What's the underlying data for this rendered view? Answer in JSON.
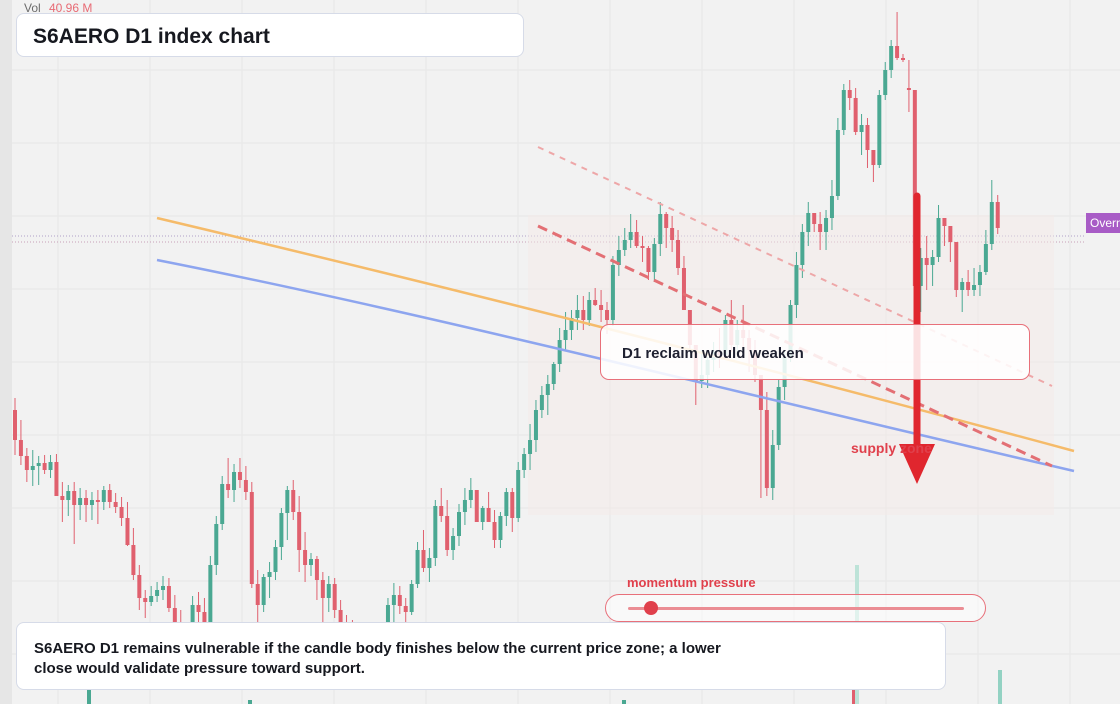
{
  "header": {
    "vol_label": "Vol",
    "vol_value": "40.96 M"
  },
  "title": "S6AERO D1 index chart",
  "callout": {
    "text": "D1 reclaim would weaken"
  },
  "zone_label": "supply zone",
  "momentum": {
    "label": "momentum pressure",
    "level": 0.07
  },
  "caption": "S6AERO D1 remains vulnerable if the candle body finishes below the current price zone; a lower close would validate pressure toward support.",
  "badge": "Overnight",
  "colors": {
    "up": "#4aa892",
    "down": "#e0606e",
    "arrow": "#e0262e",
    "ma_orange": "#f5bb6a",
    "ma_blue": "#8da5ef",
    "badge": "#a85cc6"
  },
  "chart_data": {
    "type": "candlestick",
    "ylim": [
      0,
      704
    ],
    "candles": [
      [
        410,
        398,
        455,
        440
      ],
      [
        440,
        420,
        465,
        456
      ],
      [
        456,
        448,
        482,
        470
      ],
      [
        470,
        450,
        486,
        466
      ],
      [
        466,
        456,
        485,
        463
      ],
      [
        463,
        455,
        474,
        470
      ],
      [
        470,
        455,
        478,
        462
      ],
      [
        462,
        454,
        495,
        496
      ],
      [
        496,
        482,
        522,
        500
      ],
      [
        500,
        485,
        516,
        491
      ],
      [
        491,
        482,
        544,
        505
      ],
      [
        505,
        488,
        520,
        498
      ],
      [
        498,
        490,
        522,
        505
      ],
      [
        505,
        492,
        520,
        500
      ],
      [
        500,
        490,
        524,
        502
      ],
      [
        502,
        486,
        510,
        490
      ],
      [
        490,
        484,
        508,
        502
      ],
      [
        502,
        493,
        513,
        507
      ],
      [
        507,
        497,
        526,
        518
      ],
      [
        518,
        502,
        546,
        545
      ],
      [
        545,
        528,
        580,
        575
      ],
      [
        575,
        565,
        610,
        598
      ],
      [
        598,
        590,
        618,
        602
      ],
      [
        602,
        586,
        606,
        596
      ],
      [
        596,
        582,
        602,
        590
      ],
      [
        590,
        576,
        600,
        586
      ],
      [
        586,
        578,
        612,
        608
      ],
      [
        608,
        595,
        628,
        625
      ],
      [
        625,
        610,
        650,
        640
      ],
      [
        640,
        625,
        660,
        630
      ],
      [
        630,
        596,
        635,
        605
      ],
      [
        605,
        592,
        622,
        612
      ],
      [
        612,
        598,
        640,
        624
      ],
      [
        624,
        556,
        630,
        565
      ],
      [
        565,
        516,
        575,
        524
      ],
      [
        524,
        476,
        530,
        484
      ],
      [
        484,
        458,
        498,
        490
      ],
      [
        490,
        464,
        502,
        472
      ],
      [
        472,
        458,
        488,
        480
      ],
      [
        480,
        466,
        500,
        492
      ],
      [
        492,
        482,
        588,
        584
      ],
      [
        584,
        570,
        622,
        605
      ],
      [
        605,
        574,
        612,
        577
      ],
      [
        577,
        562,
        598,
        572
      ],
      [
        572,
        540,
        580,
        547
      ],
      [
        547,
        508,
        560,
        513
      ],
      [
        513,
        486,
        540,
        490
      ],
      [
        490,
        480,
        520,
        512
      ],
      [
        512,
        496,
        572,
        550
      ],
      [
        550,
        532,
        582,
        565
      ],
      [
        565,
        553,
        576,
        559
      ],
      [
        559,
        556,
        600,
        580
      ],
      [
        580,
        572,
        625,
        598
      ],
      [
        598,
        576,
        612,
        584
      ],
      [
        584,
        578,
        618,
        610
      ],
      [
        610,
        600,
        646,
        628
      ],
      [
        628,
        615,
        660,
        636
      ],
      [
        636,
        620,
        662,
        645
      ],
      [
        645,
        628,
        676,
        650
      ],
      [
        650,
        640,
        690,
        668
      ],
      [
        668,
        644,
        684,
        650
      ],
      [
        650,
        632,
        678,
        655
      ],
      [
        655,
        622,
        688,
        630
      ],
      [
        630,
        598,
        642,
        605
      ],
      [
        605,
        583,
        625,
        595
      ],
      [
        595,
        586,
        614,
        606
      ],
      [
        606,
        598,
        626,
        612
      ],
      [
        612,
        580,
        615,
        584
      ],
      [
        584,
        542,
        588,
        550
      ],
      [
        550,
        530,
        572,
        568
      ],
      [
        568,
        548,
        582,
        558
      ],
      [
        558,
        500,
        566,
        506
      ],
      [
        506,
        488,
        522,
        516
      ],
      [
        516,
        500,
        556,
        550
      ],
      [
        550,
        528,
        560,
        536
      ],
      [
        536,
        504,
        546,
        512
      ],
      [
        512,
        488,
        525,
        500
      ],
      [
        500,
        478,
        508,
        490
      ],
      [
        490,
        495,
        522,
        522
      ],
      [
        522,
        506,
        530,
        508
      ],
      [
        508,
        492,
        520,
        522
      ],
      [
        522,
        510,
        548,
        540
      ],
      [
        540,
        512,
        548,
        516
      ],
      [
        516,
        488,
        526,
        492
      ],
      [
        492,
        488,
        532,
        518
      ],
      [
        518,
        462,
        522,
        470
      ],
      [
        470,
        448,
        478,
        454
      ],
      [
        454,
        424,
        470,
        440
      ],
      [
        440,
        400,
        452,
        410
      ],
      [
        410,
        386,
        418,
        395
      ],
      [
        395,
        375,
        415,
        384
      ],
      [
        384,
        362,
        390,
        364
      ],
      [
        364,
        328,
        372,
        340
      ],
      [
        340,
        312,
        350,
        330
      ],
      [
        330,
        310,
        340,
        318
      ],
      [
        318,
        295,
        330,
        310
      ],
      [
        310,
        296,
        330,
        320
      ],
      [
        320,
        292,
        326,
        300
      ],
      [
        300,
        288,
        306,
        305
      ],
      [
        305,
        290,
        322,
        310
      ],
      [
        310,
        302,
        334,
        320
      ],
      [
        320,
        256,
        326,
        265
      ],
      [
        265,
        236,
        276,
        250
      ],
      [
        250,
        228,
        256,
        240
      ],
      [
        240,
        214,
        248,
        232
      ],
      [
        232,
        220,
        248,
        246
      ],
      [
        246,
        236,
        262,
        248
      ],
      [
        248,
        246,
        280,
        272
      ],
      [
        272,
        238,
        282,
        244
      ],
      [
        244,
        202,
        256,
        214
      ],
      [
        214,
        212,
        248,
        228
      ],
      [
        228,
        216,
        252,
        240
      ],
      [
        240,
        230,
        275,
        268
      ],
      [
        268,
        256,
        310,
        310
      ],
      [
        310,
        316,
        352,
        345
      ],
      [
        345,
        348,
        405,
        381
      ],
      [
        381,
        350,
        388,
        375
      ],
      [
        375,
        357,
        388,
        360
      ],
      [
        360,
        342,
        372,
        352
      ],
      [
        352,
        328,
        368,
        355
      ],
      [
        355,
        315,
        360,
        320
      ],
      [
        320,
        300,
        352,
        345
      ],
      [
        345,
        320,
        352,
        330
      ],
      [
        330,
        305,
        356,
        338
      ],
      [
        338,
        330,
        372,
        350
      ],
      [
        350,
        340,
        382,
        375
      ],
      [
        375,
        380,
        498,
        410
      ],
      [
        410,
        392,
        496,
        488
      ],
      [
        488,
        430,
        500,
        445
      ],
      [
        445,
        380,
        450,
        387
      ],
      [
        387,
        352,
        400,
        357
      ],
      [
        357,
        300,
        362,
        305
      ],
      [
        305,
        252,
        318,
        265
      ],
      [
        265,
        224,
        278,
        232
      ],
      [
        232,
        202,
        246,
        213
      ],
      [
        213,
        220,
        232,
        224
      ],
      [
        224,
        212,
        250,
        232
      ],
      [
        232,
        210,
        250,
        218
      ],
      [
        218,
        180,
        230,
        196
      ],
      [
        196,
        118,
        200,
        130
      ],
      [
        130,
        84,
        135,
        90
      ],
      [
        90,
        80,
        110,
        98
      ],
      [
        98,
        88,
        135,
        132
      ],
      [
        132,
        114,
        155,
        125
      ],
      [
        125,
        118,
        168,
        150
      ],
      [
        150,
        164,
        182,
        165
      ],
      [
        165,
        90,
        168,
        95
      ],
      [
        95,
        62,
        100,
        70
      ],
      [
        70,
        40,
        78,
        46
      ],
      [
        46,
        12,
        60,
        58
      ],
      [
        58,
        0,
        0,
        0
      ],
      [
        88,
        60,
        112,
        90
      ],
      [
        90,
        255,
        318,
        286
      ],
      [
        286,
        248,
        312,
        258
      ],
      [
        258,
        236,
        290,
        265
      ],
      [
        265,
        250,
        286,
        257
      ],
      [
        257,
        205,
        262,
        218
      ],
      [
        218,
        218,
        246,
        226
      ],
      [
        226,
        238,
        262,
        242
      ],
      [
        242,
        262,
        297,
        290
      ],
      [
        290,
        278,
        312,
        282
      ],
      [
        282,
        270,
        296,
        290
      ],
      [
        290,
        268,
        296,
        285
      ],
      [
        285,
        265,
        296,
        272
      ],
      [
        272,
        230,
        275,
        244
      ],
      [
        244,
        180,
        250,
        202
      ],
      [
        202,
        195,
        234,
        228
      ]
    ],
    "ma_lines": [
      {
        "color": "orange",
        "points": [
          [
            157,
            218
          ],
          [
            600,
            323
          ],
          [
            1074,
            451
          ]
        ]
      },
      {
        "color": "blue",
        "points": [
          [
            157,
            260
          ],
          [
            420,
            312
          ],
          [
            700,
            384
          ],
          [
            1074,
            471
          ]
        ]
      }
    ],
    "trendlines": [
      {
        "style": "dashed-thick",
        "points": [
          [
            538,
            226
          ],
          [
            1052,
            466
          ]
        ]
      },
      {
        "style": "dashed-thin",
        "points": [
          [
            538,
            147
          ],
          [
            1052,
            386
          ]
        ]
      }
    ],
    "ylabel": "",
    "xlabel": ""
  }
}
